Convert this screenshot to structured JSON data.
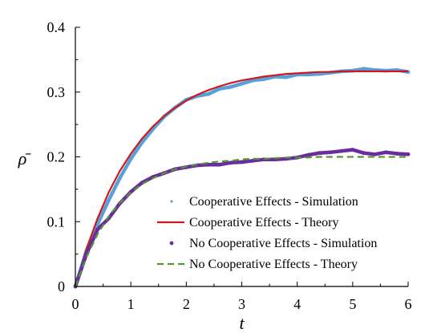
{
  "chart_data": {
    "type": "line",
    "xlabel": "t",
    "ylabel": "ρ̄",
    "xlim": [
      0,
      6
    ],
    "ylim": [
      0,
      0.4
    ],
    "xticks": [
      0,
      1,
      2,
      3,
      4,
      5,
      6
    ],
    "xtick_labels": [
      "0",
      "1",
      "2",
      "3",
      "4",
      "5",
      "6"
    ],
    "yticks": [
      0,
      0.1,
      0.2,
      0.3,
      0.4
    ],
    "ytick_labels": [
      "0",
      "0.1",
      "0.2",
      "0.3",
      "0.4"
    ],
    "legend_position": "lower-right",
    "grid": false,
    "series": [
      {
        "name": "Cooperative Effects - Simulation",
        "style": "points",
        "color": "#5aa0d8",
        "x": [
          0,
          0.2,
          0.4,
          0.6,
          0.8,
          1.0,
          1.2,
          1.4,
          1.6,
          1.8,
          2.0,
          2.2,
          2.4,
          2.6,
          2.8,
          3.0,
          3.2,
          3.4,
          3.6,
          3.8,
          4.0,
          4.2,
          4.4,
          4.6,
          4.8,
          5.0,
          5.2,
          5.4,
          5.6,
          5.8,
          6.0
        ],
        "y": [
          0,
          0.055,
          0.096,
          0.133,
          0.167,
          0.197,
          0.222,
          0.243,
          0.262,
          0.276,
          0.288,
          0.294,
          0.297,
          0.305,
          0.308,
          0.313,
          0.318,
          0.32,
          0.324,
          0.323,
          0.327,
          0.327,
          0.328,
          0.33,
          0.332,
          0.333,
          0.336,
          0.334,
          0.333,
          0.334,
          0.331
        ]
      },
      {
        "name": "Cooperative Effects - Theory",
        "style": "solid",
        "color": "#d0181c",
        "x": [
          0,
          0.2,
          0.4,
          0.6,
          0.8,
          1.0,
          1.2,
          1.4,
          1.6,
          1.8,
          2.0,
          2.2,
          2.4,
          2.6,
          2.8,
          3.0,
          3.2,
          3.4,
          3.6,
          3.8,
          4.0,
          4.2,
          4.4,
          4.6,
          4.8,
          5.0,
          5.2,
          5.4,
          5.6,
          5.8,
          6.0
        ],
        "y": [
          0,
          0.058,
          0.105,
          0.145,
          0.178,
          0.205,
          0.228,
          0.247,
          0.263,
          0.276,
          0.287,
          0.296,
          0.303,
          0.309,
          0.314,
          0.318,
          0.321,
          0.324,
          0.326,
          0.328,
          0.329,
          0.33,
          0.331,
          0.331,
          0.332,
          0.332,
          0.332,
          0.332,
          0.332,
          0.332,
          0.332
        ]
      },
      {
        "name": "No Cooperative Effects - Simulation",
        "style": "points",
        "color": "#6a2c9e",
        "x": [
          0,
          0.2,
          0.4,
          0.6,
          0.8,
          1.0,
          1.2,
          1.4,
          1.6,
          1.8,
          2.0,
          2.2,
          2.4,
          2.6,
          2.8,
          3.0,
          3.2,
          3.4,
          3.6,
          3.8,
          4.0,
          4.2,
          4.4,
          4.6,
          4.8,
          5.0,
          5.2,
          5.4,
          5.6,
          5.8,
          6.0
        ],
        "y": [
          0,
          0.05,
          0.088,
          0.105,
          0.128,
          0.146,
          0.16,
          0.169,
          0.175,
          0.181,
          0.184,
          0.187,
          0.188,
          0.188,
          0.191,
          0.192,
          0.194,
          0.196,
          0.196,
          0.197,
          0.199,
          0.203,
          0.206,
          0.207,
          0.209,
          0.211,
          0.206,
          0.204,
          0.207,
          0.205,
          0.204
        ]
      },
      {
        "name": "No Cooperative Effects - Theory",
        "style": "dashed",
        "color": "#4e9a2e",
        "x": [
          0,
          0.2,
          0.4,
          0.6,
          0.8,
          1.0,
          1.2,
          1.4,
          1.6,
          1.8,
          2.0,
          2.2,
          2.4,
          2.6,
          2.8,
          3.0,
          3.2,
          3.4,
          3.6,
          3.8,
          4.0,
          4.2,
          4.4,
          4.6,
          4.8,
          5.0,
          5.2,
          5.4,
          5.6,
          5.8,
          6.0
        ],
        "y": [
          0,
          0.045,
          0.081,
          0.108,
          0.129,
          0.145,
          0.158,
          0.167,
          0.175,
          0.181,
          0.185,
          0.188,
          0.191,
          0.193,
          0.194,
          0.196,
          0.197,
          0.197,
          0.198,
          0.199,
          0.199,
          0.199,
          0.2,
          0.2,
          0.2,
          0.2,
          0.2,
          0.2,
          0.2,
          0.2,
          0.2
        ]
      }
    ]
  }
}
